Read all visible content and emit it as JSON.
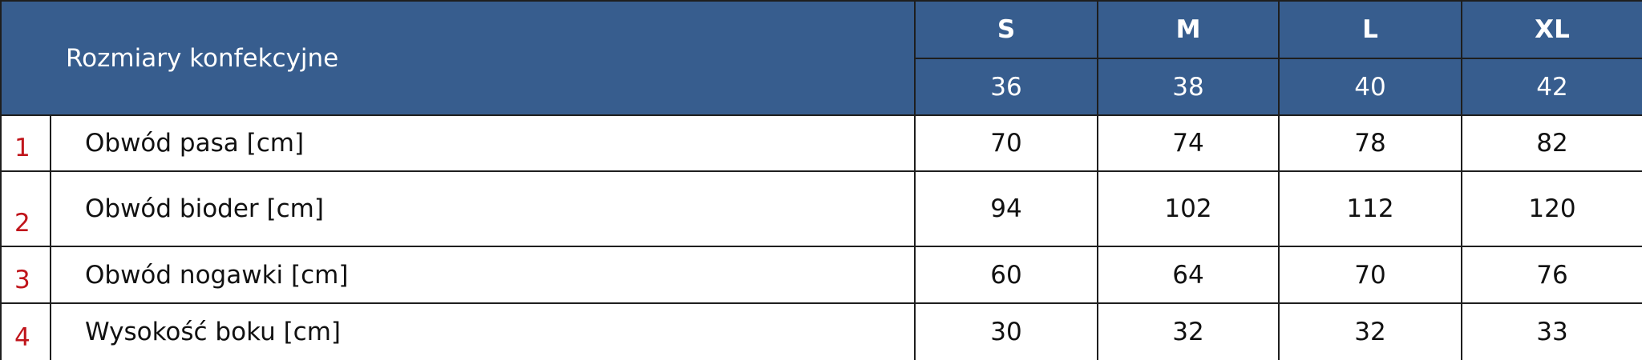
{
  "header": {
    "title": "Rozmiary konfekcyjne",
    "sizes": [
      "S",
      "M",
      "L",
      "XL"
    ],
    "eu_sizes": [
      36,
      38,
      40,
      42
    ]
  },
  "rows": [
    {
      "number": 1,
      "label": "Obwód pasa [cm]",
      "values": [
        70,
        74,
        78,
        82
      ]
    },
    {
      "number": 2,
      "label": "Obwód bioder [cm]",
      "values": [
        94,
        102,
        112,
        120
      ]
    },
    {
      "number": 3,
      "label": "Obwód nogawki [cm]",
      "values": [
        60,
        64,
        70,
        76
      ]
    },
    {
      "number": 4,
      "label": "Wysokość boku [cm]",
      "values": [
        30,
        32,
        32,
        33
      ]
    }
  ]
}
